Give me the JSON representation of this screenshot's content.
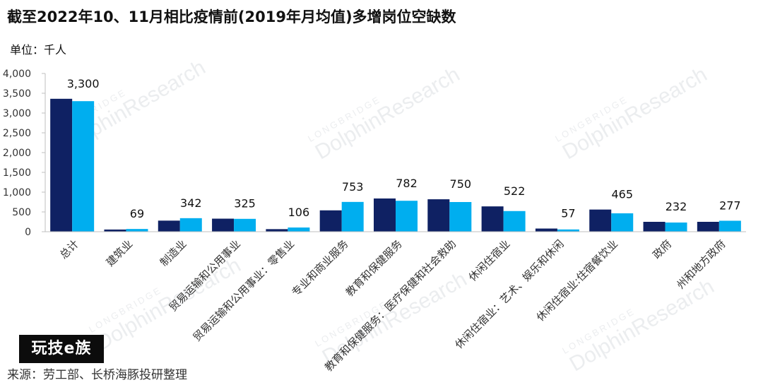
{
  "title": "截至2022年10、11月相比疫情前(2019年月均值)多增岗位空缺数",
  "unit": "单位：千人",
  "source": "来源：劳工部、长桥海豚投研整理",
  "logo": "玩技e族",
  "watermark": {
    "brand": "DolphinResearch",
    "small": "LONGBRIDGE"
  },
  "colors": {
    "series1": "#0f2163",
    "series2": "#00aeef"
  },
  "chart_data": {
    "type": "bar",
    "ylim": [
      0,
      4000
    ],
    "yticks": [
      "0",
      "500",
      "1,000",
      "1,500",
      "2,000",
      "2,500",
      "3,000",
      "3,500",
      "4,000"
    ],
    "categories": [
      "总计",
      "建筑业",
      "制造业",
      "贸易运输和公用事业",
      "贸易运输和公用事业：零售业",
      "专业和商业服务",
      "教育和保健服务",
      "教育和保健服务：医疗保健和社会救助",
      "休闲住宿业",
      "休闲住宿业：艺术、娱乐和休闲",
      "休闲住宿业:住宿餐饮业",
      "政府",
      "州和地方政府"
    ],
    "series": [
      {
        "values": [
          3360,
          55,
          280,
          330,
          65,
          540,
          840,
          820,
          640,
          80,
          560,
          250,
          250
        ]
      },
      {
        "values": [
          3300,
          69,
          342,
          325,
          106,
          753,
          782,
          750,
          522,
          57,
          465,
          232,
          277
        ]
      }
    ],
    "data_labels": [
      "3,300",
      "69",
      "342",
      "325",
      "106",
      "753",
      "782",
      "750",
      "522",
      "57",
      "465",
      "232",
      "277"
    ]
  }
}
